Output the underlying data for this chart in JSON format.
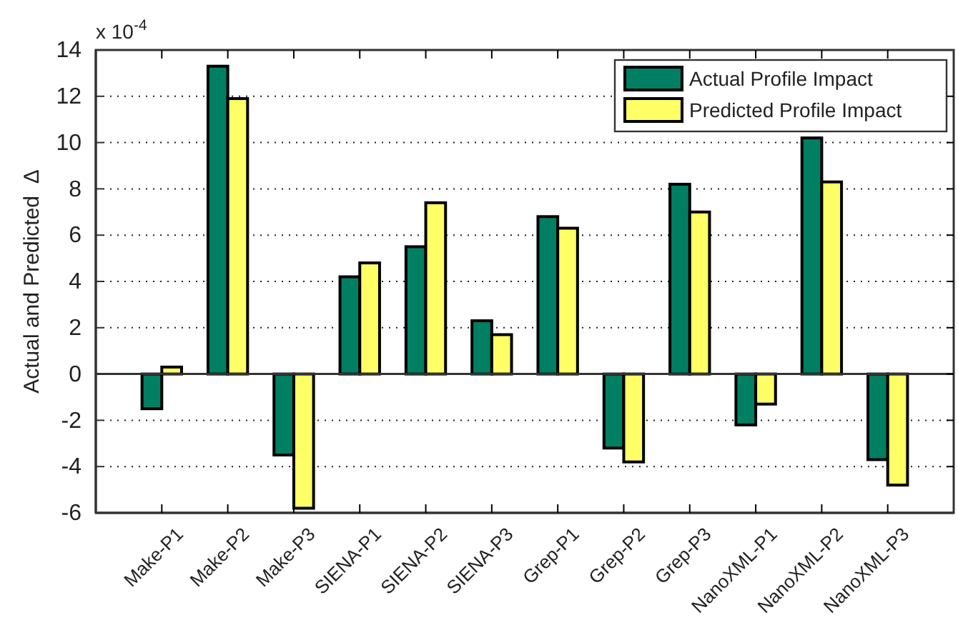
{
  "chart_data": {
    "type": "bar",
    "ylabel": "Actual and Predicted  Δ",
    "annotations": [
      "x 10$^{-4}$"
    ],
    "categories": [
      "Make-P1",
      "Make-P2",
      "Make-P3",
      "SIENA-P1",
      "SIENA-P2",
      "SIENA-P3",
      "Grep-P1",
      "Grep-P2",
      "Grep-P3",
      "NanoXML-P1",
      "NanoXML-P2",
      "NanoXML-P3"
    ],
    "series": [
      {
        "name": "Actual Profile Impact",
        "color": "#007f62",
        "values": [
          -1.5,
          13.3,
          -3.5,
          4.2,
          5.5,
          2.3,
          6.8,
          -3.2,
          8.2,
          -2.2,
          10.2,
          -3.7
        ]
      },
      {
        "name": "Predicted Profile Impact",
        "color": "#ffff66",
        "values": [
          0.3,
          11.9,
          -5.8,
          4.8,
          7.4,
          1.7,
          6.3,
          -3.8,
          7.0,
          -1.3,
          8.3,
          -4.8
        ]
      }
    ],
    "ylim": [
      -6,
      14
    ],
    "yticks": [
      -6,
      -4,
      -2,
      0,
      2,
      4,
      6,
      8,
      10,
      12,
      14
    ],
    "grid": "y",
    "legend": "top right"
  }
}
